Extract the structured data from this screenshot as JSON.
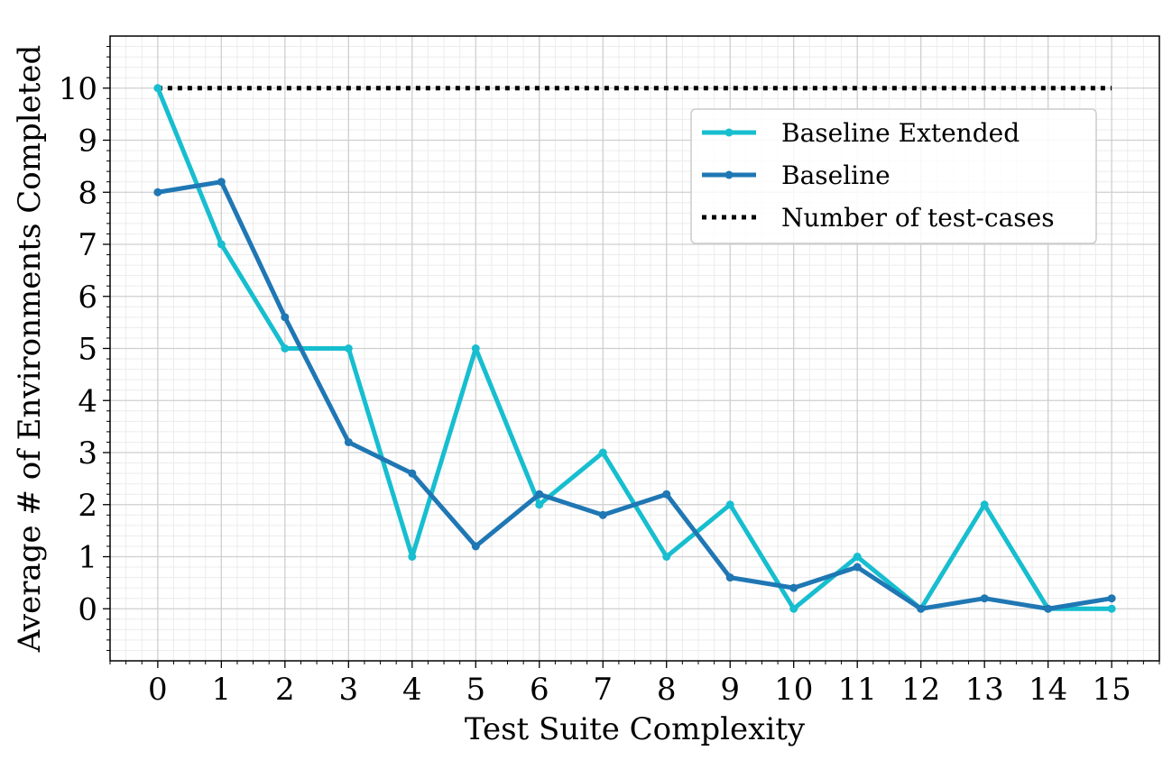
{
  "chart_data": {
    "type": "line",
    "xlabel": "Test Suite Complexity",
    "ylabel": "Average # of Environments Completed",
    "xlim": [
      -0.75,
      15.75
    ],
    "ylim": [
      -1,
      11
    ],
    "xticks": [
      "0",
      "1",
      "2",
      "3",
      "4",
      "5",
      "6",
      "7",
      "8",
      "9",
      "10",
      "11",
      "12",
      "13",
      "14",
      "15"
    ],
    "yticks": [
      "0",
      "1",
      "2",
      "3",
      "4",
      "5",
      "6",
      "7",
      "8",
      "9",
      "10"
    ],
    "grid": true,
    "minor_grid": true,
    "legend_position": "upper-right",
    "x": [
      0,
      1,
      2,
      3,
      4,
      5,
      6,
      7,
      8,
      9,
      10,
      11,
      12,
      13,
      14,
      15
    ],
    "series": [
      {
        "name": "Baseline Extended",
        "color": "#17becf",
        "style": "solid",
        "markers": true,
        "values": [
          10,
          7,
          5,
          5,
          1,
          5,
          2,
          3,
          1,
          2,
          0,
          1,
          0,
          2,
          0,
          0
        ]
      },
      {
        "name": "Baseline",
        "color": "#1f77b4",
        "style": "solid",
        "markers": true,
        "values": [
          8,
          8.2,
          5.6,
          3.2,
          2.6,
          1.2,
          2.2,
          1.8,
          2.2,
          0.6,
          0.4,
          0.8,
          0,
          0.2,
          0,
          0.2
        ]
      },
      {
        "name": "Number of test-cases",
        "color": "#000000",
        "style": "dotted",
        "markers": false,
        "values": [
          10,
          10,
          10,
          10,
          10,
          10,
          10,
          10,
          10,
          10,
          10,
          10,
          10,
          10,
          10,
          10
        ]
      }
    ]
  }
}
